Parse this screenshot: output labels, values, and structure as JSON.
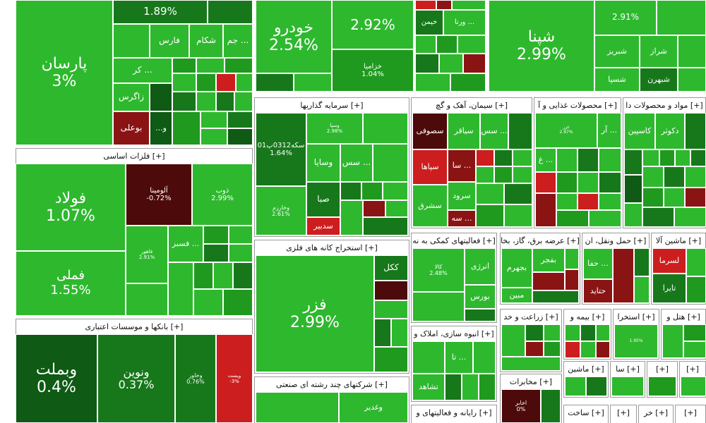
{
  "colors": {
    "g": "#2eb82e",
    "gl": "#5ec91e",
    "gm": "#1f9a1f",
    "gd": "#17781b",
    "gv": "#0f5a14",
    "r": "#cc1e1e",
    "rd": "#8a1414",
    "rv": "#4d0a0a"
  },
  "sections": {
    "s1": "فلزات اساسی [+]",
    "s2": "بانکها و موسسات اعتباری [+]",
    "s3": "سرمایه گذاریها [+]",
    "s4": "سیمان، آهک و گچ [+]",
    "s5": "محصولات غذایی و آ [+]",
    "s6": "مواد و محصولات دا [+]",
    "s7": "استخراج کانه های فلزی [+]",
    "s8": "فعالیتهای کمکی به نه [+]",
    "s9": "عرضه برق، گاز، بخا [+]",
    "s10": "حمل ونقل، ان [+]",
    "s11": "ماشین آلا [+]",
    "s12": "انبوه سازی، املاک و [+]",
    "s13": "زراعت و خد [+]",
    "s14": "بیمه و [+]",
    "s15": "استخرا [+]",
    "s16": "هتل و [+]",
    "s17": "شرکتهای چند رشته ای صنعتی [+]",
    "s18": "مخابرات [+]",
    "s19": "رایانه و فعالیتهای و [+]",
    "s20": "ماشین [+]",
    "s21": "سا [+]",
    "s22": "[+]",
    "s23": "[+]",
    "s24": "ساخت [+]",
    "s25": "[+]",
    "s26": "خر [+]",
    "s27": "[+]"
  },
  "tiles": {
    "t1": {
      "name": "1.89%"
    },
    "t2": {
      "name": "پارسان",
      "pct": "3%"
    },
    "t3": {
      "name": "فارس"
    },
    "t4": {
      "name": "شکام"
    },
    "t5": {
      "name": "جم ..."
    },
    "t6": {
      "name": "کر ..."
    },
    "t7": {
      "name": "زاگرس"
    },
    "t8": {
      "name": "بوعلی"
    },
    "t9": {
      "name": "...و"
    },
    "t10": {
      "name": "فولاد",
      "pct": "1.07%"
    },
    "t11": {
      "name": "آلومینا",
      "pct": "-0.72%"
    },
    "t12": {
      "name": "ذوب",
      "pct": "2.99%"
    },
    "t13": {
      "name": "فملی",
      "pct": "1.55%"
    },
    "t14": {
      "name": "فاهور",
      "pct": "2.91%"
    },
    "t15": {
      "name": "فسبز ..."
    },
    "t16": {
      "name": "وبملت",
      "pct": "0.4%"
    },
    "t17": {
      "name": "ونوین",
      "pct": "0.37%"
    },
    "t18": {
      "name": "وخاور",
      "pct": "0.76%"
    },
    "t19": {
      "name": "ویست",
      "pct": "-3%"
    },
    "t20": {
      "name": "خودرو",
      "pct": "2.54%"
    },
    "t21": {
      "name": "2.92%"
    },
    "t22": {
      "name": "خزامیا",
      "pct": "1.04%"
    },
    "t23": {
      "name": "خیمن"
    },
    "t24": {
      "name": "ورنا ..."
    },
    "t25": {
      "name": "شپنا",
      "pct": "2.99%"
    },
    "t26": {
      "name": "2.91%"
    },
    "t27": {
      "name": "شراز"
    },
    "t28": {
      "name": "شبریز"
    },
    "t29": {
      "name": "شسپا"
    },
    "t30": {
      "name": "شبهرن"
    },
    "t31": {
      "name": "سکه0312پ01",
      "pct": "1.64%"
    },
    "t32": {
      "name": "وسپا",
      "pct": "2.98%"
    },
    "t33": {
      "name": "وسایا"
    },
    "t34": {
      "name": "صبا"
    },
    "t35": {
      "name": "سدبیر"
    },
    "t36": {
      "name": "وخارزم",
      "pct": "2.61%"
    },
    "t37": {
      "name": "سس ..."
    },
    "t38": {
      "name": "سصوفی"
    },
    "t39": {
      "name": "سیاقر"
    },
    "t40": {
      "name": "سپاها"
    },
    "t41": {
      "name": "سرود"
    },
    "t42": {
      "name": "سشرق"
    },
    "t43": {
      "name": "سه ..."
    },
    "t44": {
      "name": "سا ..."
    },
    "t45": {
      "name": "آر ..."
    },
    "t46": {
      "name": "غ ..."
    },
    "t47": {
      "name": "دکوثر"
    },
    "t48": {
      "name": "کاسپین"
    },
    "t49": {
      "name": "فزر",
      "pct": "2.99%"
    },
    "t50": {
      "name": "ککل"
    },
    "t51": {
      "name": "کالا",
      "pct": "2.48%"
    },
    "t52": {
      "name": "انرژی"
    },
    "t53": {
      "name": "بورس"
    },
    "t54": {
      "name": "بفجر"
    },
    "t55": {
      "name": "بجهرم"
    },
    "t56": {
      "name": "مبین"
    },
    "t57": {
      "name": "حفا ..."
    },
    "t58": {
      "name": "حتاید"
    },
    "t59": {
      "name": "لسرما"
    },
    "t60": {
      "name": "تایرا"
    },
    "t61": {
      "name": "تشاهد"
    },
    "t62": {
      "name": "تا ..."
    },
    "t63": {
      "name": "اخابر",
      "pct": "0%"
    },
    "t64": {
      "name": "وغدیر"
    },
    "t65": {
      "name": "1.95%"
    },
    "t66": {
      "name": "2.97%"
    },
    "t67": {
      "name": "غزر"
    }
  }
}
